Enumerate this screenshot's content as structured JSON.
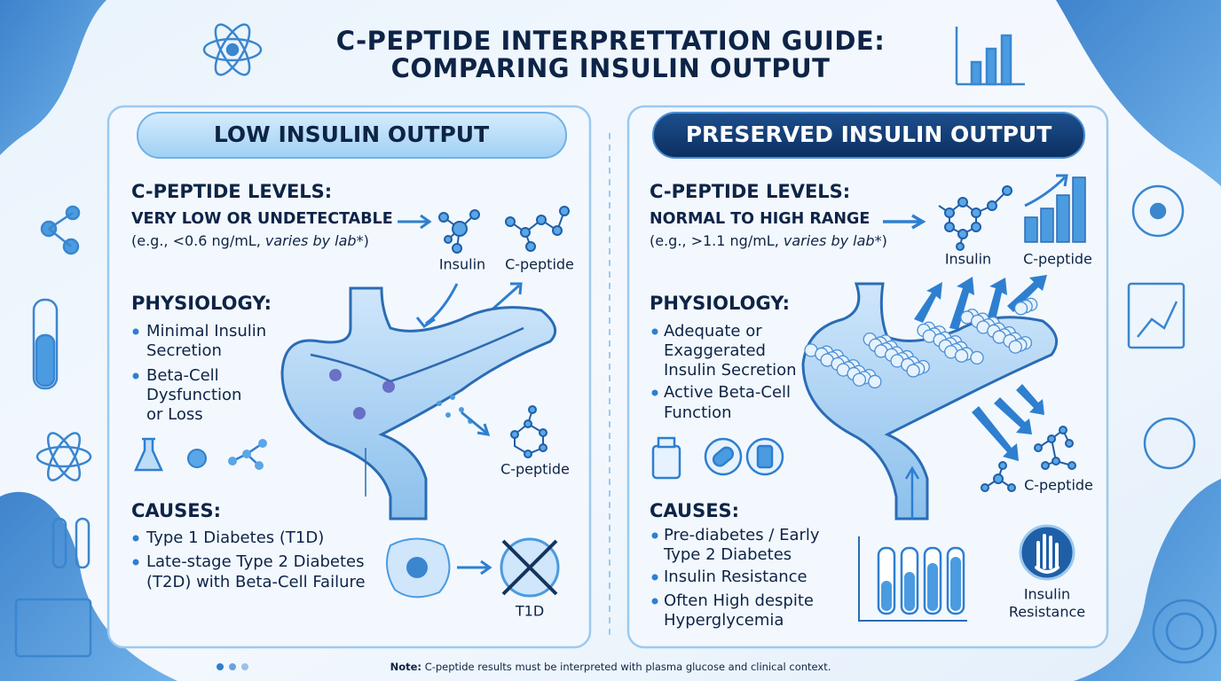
{
  "title": {
    "lines": [
      "C-PEPTIDE INTERPRETTATION GUIDE:",
      "COMPARING INSULIN OUTPUT"
    ]
  },
  "panels": [
    {
      "header": "LOW INSULIN OUTPUT",
      "levels_heading": "C-PEPTIDE LEVELS:",
      "levels_value": "VERY LOW OR UNDETECTABLE",
      "range": "(e.g., <0.6 ng/mL,",
      "range_note": "varies by lab*",
      "range_close": ")",
      "labels": {
        "insulin": "Insulin",
        "c_peptide": "C-peptide",
        "c_peptide_released": "C-peptide"
      },
      "physiology_heading": "PHYSIOLOGY:",
      "physiology": [
        [
          "Minimal Insulin",
          "Secretion"
        ],
        [
          "Beta-Cell",
          "Dysfunction",
          "or Loss"
        ]
      ],
      "causes_heading": "CAUSES:",
      "causes": [
        [
          "Type 1 Diabetes (T1D)"
        ],
        [
          "Late-stage Type 2 Diabetes",
          "(T2D) with Beta-Cell Failure"
        ]
      ],
      "icon_label": [
        "T1D"
      ]
    },
    {
      "header": "PRESERVED INSULIN OUTPUT",
      "levels_heading": "C-PEPTIDE LEVELS:",
      "levels_value": "NORMAL TO HIGH RANGE",
      "range": "(e.g., >1.1 ng/mL,",
      "range_note": "varies by lab*",
      "range_close": ")",
      "labels": {
        "insulin": "Insulin",
        "c_peptide": "C-peptide",
        "c_peptide_released": "C-peptide"
      },
      "physiology_heading": "PHYSIOLOGY:",
      "physiology": [
        [
          "Adequate or",
          "Exaggerated",
          "Insulin Secretion"
        ],
        [
          "Active Beta-Cell",
          "Function"
        ]
      ],
      "causes_heading": "CAUSES:",
      "causes": [
        [
          "Pre-diabetes / Early",
          "Type 2 Diabetes"
        ],
        [
          "Insulin Resistance"
        ],
        [
          "Often High despite",
          "Hyperglycemia"
        ]
      ],
      "icon_label": [
        "Insulin",
        "Resistance"
      ]
    }
  ],
  "footer": {
    "note_label": "Note:",
    "note_text": "C-peptide results must be interpreted with plasma glucose and clinical context."
  }
}
